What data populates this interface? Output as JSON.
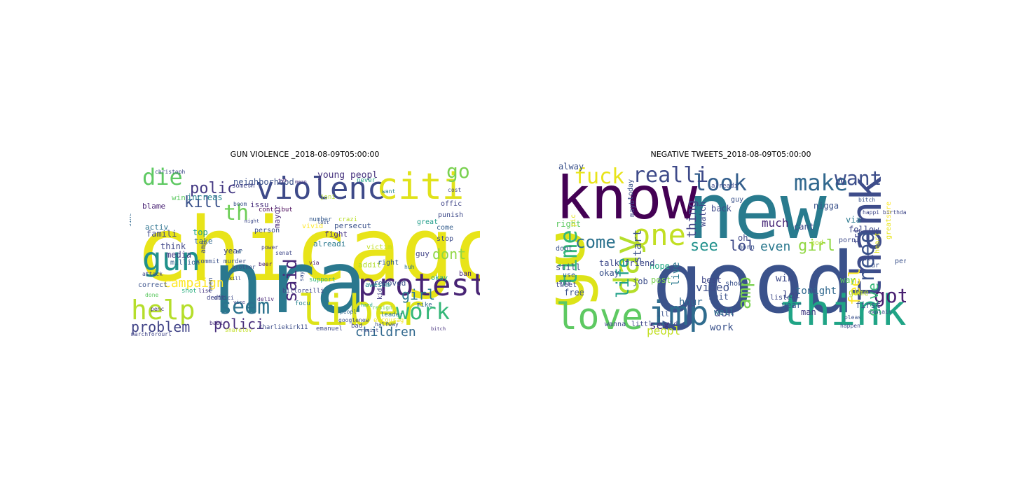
{
  "panels": [
    {
      "title": "GUN VIOLENCE _2018-08-09T05:00:00",
      "words": [
        {
          "text": "chicago",
          "color": "#e8e419"
        },
        {
          "text": "nra",
          "color": "#2a788e"
        },
        {
          "text": "violenc",
          "color": "#3e4a89"
        },
        {
          "text": "citi",
          "color": "#e0e21a"
        },
        {
          "text": "liber",
          "color": "#dde318"
        },
        {
          "text": "protest",
          "color": "#482475"
        },
        {
          "text": "gun",
          "color": "#21918c"
        },
        {
          "text": "help",
          "color": "#b5de2b"
        },
        {
          "text": "work",
          "color": "#35b779"
        },
        {
          "text": "die",
          "color": "#5ec962"
        },
        {
          "text": "seem",
          "color": "#2c728e"
        },
        {
          "text": "problem",
          "color": "#414487"
        },
        {
          "text": "polici",
          "color": "#472d7b"
        },
        {
          "text": "campaign",
          "color": "#fde725"
        },
        {
          "text": "children",
          "color": "#31688e"
        },
        {
          "text": "kill",
          "color": "#3b528b"
        },
        {
          "text": "polic",
          "color": "#443983"
        },
        {
          "text": "th",
          "color": "#6ece58"
        },
        {
          "text": "said",
          "color": "#482878"
        },
        {
          "text": "dont",
          "color": "#90d743"
        },
        {
          "text": "go",
          "color": "#7ad151"
        },
        {
          "text": "girl",
          "color": "#2a788e"
        },
        {
          "text": "young peopl",
          "color": "#46337e"
        },
        {
          "text": "neighborhood",
          "color": "#3b528b"
        },
        {
          "text": "increas",
          "color": "#26828e"
        },
        {
          "text": "win",
          "color": "#5ec962"
        },
        {
          "text": "media",
          "color": "#443a83"
        },
        {
          "text": "famili",
          "color": "#3f4788"
        },
        {
          "text": "blame",
          "color": "#482173"
        },
        {
          "text": "activ",
          "color": "#2c728e"
        },
        {
          "text": "think",
          "color": "#404688"
        },
        {
          "text": "top",
          "color": "#1f9e89"
        },
        {
          "text": "take",
          "color": "#31688e"
        },
        {
          "text": "year",
          "color": "#3e4989"
        },
        {
          "text": "fight",
          "color": "#46327e"
        },
        {
          "text": "persecut",
          "color": "#3b528b"
        },
        {
          "text": "issu",
          "color": "#472d7b"
        },
        {
          "text": "mayor",
          "color": "#482878"
        },
        {
          "text": "alreadi",
          "color": "#2a788e"
        },
        {
          "text": "person",
          "color": "#3d4d8a"
        },
        {
          "text": "guy",
          "color": "#414487"
        },
        {
          "text": "victim",
          "color": "#c2df23"
        },
        {
          "text": "addit",
          "color": "#b2dd2d"
        },
        {
          "text": "removed",
          "color": "#3b528b"
        },
        {
          "text": "ban",
          "color": "#482475"
        },
        {
          "text": "right",
          "color": "#355f8d"
        },
        {
          "text": "okay",
          "color": "#20a486"
        },
        {
          "text": "stop",
          "color": "#3e4c8a"
        },
        {
          "text": "come",
          "color": "#355e8d"
        },
        {
          "text": "great",
          "color": "#1e9c89"
        },
        {
          "text": "offic",
          "color": "#404588"
        },
        {
          "text": "punish",
          "color": "#3e4a89"
        },
        {
          "text": "contribut",
          "color": "#440154"
        },
        {
          "text": "number",
          "color": "#375b8d"
        },
        {
          "text": "crazi",
          "color": "#b8de29"
        },
        {
          "text": "never",
          "color": "#22a884"
        },
        {
          "text": "someth",
          "color": "#404387"
        },
        {
          "text": "million",
          "color": "#355f8d"
        },
        {
          "text": "correct",
          "color": "#3b528b"
        },
        {
          "text": "done",
          "color": "#5ec962"
        },
        {
          "text": "penc",
          "color": "#46307e"
        },
        {
          "text": "shot",
          "color": "#29af7f"
        },
        {
          "text": "dedic",
          "color": "#414487"
        },
        {
          "text": "teen",
          "color": "#3b518b"
        },
        {
          "text": "billoreilli",
          "color": "#3f4788"
        },
        {
          "text": "charliekirk11",
          "color": "#3d4e8a"
        },
        {
          "text": "emanuel",
          "color": "#3e4989"
        },
        {
          "text": "bad",
          "color": "#404688"
        },
        {
          "text": "encourag",
          "color": "#f1e51d"
        },
        {
          "text": "leader",
          "color": "#2a768e"
        },
        {
          "text": "mike",
          "color": "#31678e"
        },
        {
          "text": "awesom",
          "color": "#23898e"
        },
        {
          "text": "support",
          "color": "#35b779"
        },
        {
          "text": "kid",
          "color": "#433e85"
        },
        {
          "text": "focu",
          "color": "#26828e"
        },
        {
          "text": "say",
          "color": "#3b528b"
        },
        {
          "text": "beer",
          "color": "#482071"
        },
        {
          "text": "senat",
          "color": "#3f4889"
        },
        {
          "text": "power",
          "color": "#433e85"
        },
        {
          "text": "amp",
          "color": "#3e4a89"
        },
        {
          "text": "commit murder",
          "color": "#3b528b"
        },
        {
          "text": "tyt",
          "color": "#482475"
        },
        {
          "text": "christoph",
          "color": "#3e4989"
        },
        {
          "text": "attack",
          "color": "#3f4788"
        },
        {
          "text": "sinc",
          "color": "#31688e"
        },
        {
          "text": "ar",
          "color": "#33638d"
        },
        {
          "text": "via",
          "color": "#481769"
        },
        {
          "text": "want",
          "color": "#26828e"
        },
        {
          "text": "cost",
          "color": "#3f4889"
        },
        {
          "text": "huh",
          "color": "#2c728e"
        },
        {
          "text": "list",
          "color": "#46337e"
        },
        {
          "text": "babi",
          "color": "#472c7a"
        },
        {
          "text": "vivid",
          "color": "#fde725"
        },
        {
          "text": "boom",
          "color": "#3b528b"
        },
        {
          "text": "joni",
          "color": "#b5de2b"
        },
        {
          "text": "might",
          "color": "#3e4a89"
        },
        {
          "text": "resign",
          "color": "#6ece58"
        },
        {
          "text": "lost",
          "color": "#3b528b"
        },
        {
          "text": "mean",
          "color": "#46337e"
        },
        {
          "text": "kill",
          "color": "#3f4788"
        },
        {
          "text": "brother",
          "color": "#3b528b"
        },
        {
          "text": "googlenew",
          "color": "#3d4e8a"
        },
        {
          "text": "marchforourl",
          "color": "#404588"
        },
        {
          "text": "sharelov",
          "color": "#c2df23"
        },
        {
          "text": "offici",
          "color": "#3e4989"
        },
        {
          "text": "vice",
          "color": "#414487"
        },
        {
          "text": "deliv",
          "color": "#482878"
        },
        {
          "text": "hard",
          "color": "#22a884"
        },
        {
          "text": "peopl",
          "color": "#31688e"
        },
        {
          "text": "halfway",
          "color": "#3b528b"
        },
        {
          "text": "racist",
          "color": "#3e4a89"
        },
        {
          "text": "bitch",
          "color": "#46327e"
        }
      ]
    },
    {
      "title": "NEGATIVE TWEETS_2018-08-09T05:00:00",
      "words": [
        {
          "text": "new",
          "color": "#297b8e"
        },
        {
          "text": "good",
          "color": "#3b528b"
        },
        {
          "text": "know",
          "color": "#440154"
        },
        {
          "text": "go",
          "color": "#dde318"
        },
        {
          "text": "thank",
          "color": "#3e4c8a"
        },
        {
          "text": "think",
          "color": "#20a486"
        },
        {
          "text": "imp",
          "color": "#2f6c8e"
        },
        {
          "text": "love",
          "color": "#5ec962"
        },
        {
          "text": "day",
          "color": "#b5de2b"
        },
        {
          "text": "one",
          "color": "#c2df23"
        },
        {
          "text": "look",
          "color": "#355f8d"
        },
        {
          "text": "make",
          "color": "#31688e"
        },
        {
          "text": "realli",
          "color": "#3e4a89"
        },
        {
          "text": "fuck",
          "color": "#e8e419"
        },
        {
          "text": "want",
          "color": "#3d4e8a"
        },
        {
          "text": "need",
          "color": "#3b528b"
        },
        {
          "text": "got",
          "color": "#482071"
        },
        {
          "text": "time",
          "color": "#35b779"
        },
        {
          "text": "come",
          "color": "#2c728e"
        },
        {
          "text": "amp",
          "color": "#7ad151"
        },
        {
          "text": "see",
          "color": "#21918c"
        },
        {
          "text": "girl",
          "color": "#90d743"
        },
        {
          "text": "lol",
          "color": "#3e4a89"
        },
        {
          "text": "even",
          "color": "#2a788e"
        },
        {
          "text": "much",
          "color": "#482878"
        },
        {
          "text": "thing",
          "color": "#414487"
        },
        {
          "text": "feel",
          "color": "#fde725"
        },
        {
          "text": "give",
          "color": "#35b779"
        },
        {
          "text": "life",
          "color": "#1fa088"
        },
        {
          "text": "sex",
          "color": "#472d7b"
        },
        {
          "text": "peopl",
          "color": "#c2df23"
        },
        {
          "text": "start",
          "color": "#3b528b"
        },
        {
          "text": "live",
          "color": "#2a788e"
        },
        {
          "text": "don",
          "color": "#3e4989"
        },
        {
          "text": "video",
          "color": "#3d4e8a"
        },
        {
          "text": "hour",
          "color": "#31688e"
        },
        {
          "text": "work",
          "color": "#3b528b"
        },
        {
          "text": "well",
          "color": "#2c728e"
        },
        {
          "text": "let",
          "color": "#3f4788"
        },
        {
          "text": "year",
          "color": "#355f8d"
        },
        {
          "text": "man",
          "color": "#443983"
        },
        {
          "text": "tonight",
          "color": "#31688e"
        },
        {
          "text": "first",
          "color": "#3b528b"
        },
        {
          "text": "win",
          "color": "#3e4a89"
        },
        {
          "text": "way",
          "color": "#5ec962"
        },
        {
          "text": "game",
          "color": "#b8de29"
        },
        {
          "text": "best",
          "color": "#3f4889"
        },
        {
          "text": "shit",
          "color": "#3b528b"
        },
        {
          "text": "post",
          "color": "#7ad151"
        },
        {
          "text": "hope",
          "color": "#22a884"
        },
        {
          "text": "still",
          "color": "#3e4989"
        },
        {
          "text": "free",
          "color": "#3b528b"
        },
        {
          "text": "tweet",
          "color": "#3f4788"
        },
        {
          "text": "job",
          "color": "#3d4e8a"
        },
        {
          "text": "right",
          "color": "#5ec962"
        },
        {
          "text": "dont",
          "color": "#3b528b"
        },
        {
          "text": "talk friend",
          "color": "#3e4989"
        },
        {
          "text": "say",
          "color": "#3f4788"
        },
        {
          "text": "okay",
          "color": "#3b528b"
        },
        {
          "text": "use",
          "color": "#355f8d"
        },
        {
          "text": "pic",
          "color": "#e0e21a"
        },
        {
          "text": "alway",
          "color": "#3b528b"
        },
        {
          "text": "back",
          "color": "#3e4a89"
        },
        {
          "text": "watch",
          "color": "#3f4788"
        },
        {
          "text": "nigga",
          "color": "#3b528b"
        },
        {
          "text": "via",
          "color": "#2a788e"
        },
        {
          "text": "follow",
          "color": "#3e4989"
        },
        {
          "text": "tri",
          "color": "#404588"
        },
        {
          "text": "guy",
          "color": "#3b528b"
        },
        {
          "text": "cant",
          "color": "#3e4a89"
        },
        {
          "text": "call",
          "color": "#3f4788"
        },
        {
          "text": "show",
          "color": "#3b528b"
        },
        {
          "text": "mayb",
          "color": "#3e4989"
        },
        {
          "text": "today",
          "color": "#3b528b"
        },
        {
          "text": "god",
          "color": "#b5de2b"
        },
        {
          "text": "heart",
          "color": "#dde318"
        },
        {
          "text": "great",
          "color": "#e8e419"
        },
        {
          "text": "sure",
          "color": "#fde725"
        },
        {
          "text": "person",
          "color": "#3b528b"
        },
        {
          "text": "listen",
          "color": "#3e4a89"
        },
        {
          "text": "littl world",
          "color": "#3f4788"
        },
        {
          "text": "ill",
          "color": "#3b528b"
        },
        {
          "text": "wanna",
          "color": "#3e4989"
        },
        {
          "text": "oh",
          "color": "#3f4889"
        },
        {
          "text": "morn",
          "color": "#3b528b"
        },
        {
          "text": "porn",
          "color": "#3e4a89"
        },
        {
          "text": "explain",
          "color": "#3f4788"
        },
        {
          "text": "pleas",
          "color": "#3b528b"
        },
        {
          "text": "happen",
          "color": "#3e4989"
        },
        {
          "text": "ur",
          "color": "#3b528b"
        },
        {
          "text": "alreadi",
          "color": "#3e4a89"
        },
        {
          "text": "happi birthday",
          "color": "#3f4788"
        },
        {
          "text": "bitch",
          "color": "#3b528b"
        }
      ]
    }
  ]
}
